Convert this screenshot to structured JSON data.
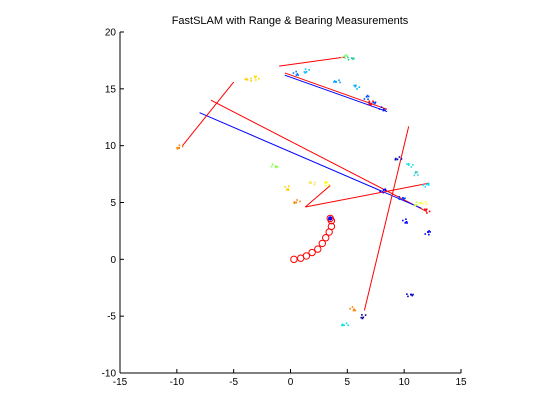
{
  "chart_data": {
    "type": "scatter",
    "title": "FastSLAM with Range & Bearing Measurements",
    "xlabel": "",
    "ylabel": "",
    "xlim": [
      -15,
      15
    ],
    "ylim": [
      -10,
      20
    ],
    "xticks": [
      -15,
      -10,
      -5,
      0,
      5,
      10,
      15
    ],
    "yticks": [
      -10,
      -5,
      0,
      5,
      10,
      15,
      20
    ],
    "grid": false,
    "legend": "none",
    "robot_path": {
      "color": "#ff0000",
      "marker": "circle",
      "points": [
        [
          0.3,
          0.0
        ],
        [
          0.9,
          0.1
        ],
        [
          1.4,
          0.3
        ],
        [
          1.9,
          0.6
        ],
        [
          2.4,
          0.9
        ],
        [
          2.8,
          1.4
        ],
        [
          3.1,
          1.9
        ],
        [
          3.4,
          2.4
        ],
        [
          3.6,
          2.9
        ],
        [
          3.6,
          3.4
        ],
        [
          3.5,
          3.6
        ]
      ]
    },
    "estimated_position": {
      "x": 3.5,
      "y": 3.6,
      "color": "#0000ff"
    },
    "measurement_lines": [
      {
        "color": "#ff0000",
        "x1": -7.0,
        "y1": 14.0,
        "x2": 12.0,
        "y2": 4.2
      },
      {
        "color": "#0000ff",
        "x1": -8.0,
        "y1": 12.9,
        "x2": 11.5,
        "y2": 4.5
      },
      {
        "color": "#ff0000",
        "x1": -5.0,
        "y1": 15.6,
        "x2": -9.5,
        "y2": 10.0
      },
      {
        "color": "#ff0000",
        "x1": -1.0,
        "y1": 17.0,
        "x2": 4.8,
        "y2": 17.8
      },
      {
        "color": "#ff0000",
        "x1": -0.5,
        "y1": 16.4,
        "x2": 8.5,
        "y2": 13.2
      },
      {
        "color": "#0000ff",
        "x1": -0.5,
        "y1": 16.2,
        "x2": 8.5,
        "y2": 13.0
      },
      {
        "color": "#ff0000",
        "x1": 1.3,
        "y1": 4.6,
        "x2": 12.2,
        "y2": 6.7
      },
      {
        "color": "#ff0000",
        "x1": 10.4,
        "y1": 11.7,
        "x2": 6.5,
        "y2": -4.5
      },
      {
        "color": "#ff0000",
        "x1": 1.3,
        "y1": 4.6,
        "x2": 3.5,
        "y2": 6.5
      }
    ],
    "landmark_clusters": [
      {
        "color": "#ff8000",
        "x": -9.8,
        "y": 9.8
      },
      {
        "color": "#ffcc00",
        "x": -3.8,
        "y": 15.8
      },
      {
        "color": "#ffe000",
        "x": -3.1,
        "y": 16.0
      },
      {
        "color": "#80ff80",
        "x": 4.8,
        "y": 17.9
      },
      {
        "color": "#20d0a0",
        "x": 5.4,
        "y": 17.7
      },
      {
        "color": "#0080ff",
        "x": 0.6,
        "y": 16.3
      },
      {
        "color": "#00c0ff",
        "x": 1.4,
        "y": 16.5
      },
      {
        "color": "#00a0ff",
        "x": 4.0,
        "y": 15.6
      },
      {
        "color": "#00b0ff",
        "x": 5.7,
        "y": 15.2
      },
      {
        "color": "#0050ff",
        "x": 6.7,
        "y": 14.3
      },
      {
        "color": "#0040ff",
        "x": 7.3,
        "y": 13.8
      },
      {
        "color": "#0020ff",
        "x": 8.2,
        "y": 13.2
      },
      {
        "color": "#ff0000",
        "x": 7.1,
        "y": 13.7
      },
      {
        "color": "#0000c0",
        "x": 9.4,
        "y": 8.8
      },
      {
        "color": "#20e0e0",
        "x": 10.4,
        "y": 8.3
      },
      {
        "color": "#40d0d0",
        "x": 11.0,
        "y": 7.6
      },
      {
        "color": "#00e0ff",
        "x": 12.0,
        "y": 6.6
      },
      {
        "color": "#80ff40",
        "x": -1.3,
        "y": 8.2
      },
      {
        "color": "#ffd000",
        "x": -0.2,
        "y": 6.2
      },
      {
        "color": "#ff8000",
        "x": 0.5,
        "y": 5.0
      },
      {
        "color": "#ffe060",
        "x": 1.8,
        "y": 6.7
      },
      {
        "color": "#ffff00",
        "x": 3.1,
        "y": 6.7
      },
      {
        "color": "#0000ff",
        "x": 8.2,
        "y": 6.1
      },
      {
        "color": "#0040ff",
        "x": 9.9,
        "y": 5.4
      },
      {
        "color": "#0000ff",
        "x": 10.2,
        "y": 3.3
      },
      {
        "color": "#c0ff40",
        "x": 11.1,
        "y": 4.8
      },
      {
        "color": "#ffff40",
        "x": 11.6,
        "y": 4.9
      },
      {
        "color": "#ff0000",
        "x": 11.9,
        "y": 4.3
      },
      {
        "color": "#0000ff",
        "x": 12.1,
        "y": 2.4
      },
      {
        "color": "#0000c0",
        "x": 10.6,
        "y": -3.1
      },
      {
        "color": "#ff8000",
        "x": 5.6,
        "y": -4.4
      },
      {
        "color": "#0000a0",
        "x": 6.4,
        "y": -5.1
      },
      {
        "color": "#00e0e0",
        "x": 4.7,
        "y": -5.8
      }
    ]
  }
}
